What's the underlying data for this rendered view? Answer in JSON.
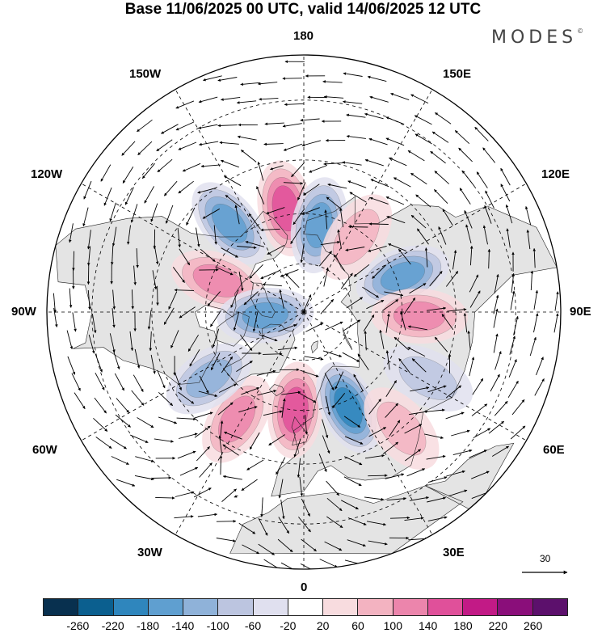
{
  "header": {
    "title": "Base 11/06/2025 00 UTC, valid 14/06/2025 12 UTC",
    "logo_text": "MODES"
  },
  "map": {
    "projection": "north-polar-stereographic",
    "longitude_labels": {
      "top": "180",
      "bottom": "0",
      "left": "90W",
      "right": "90E",
      "upper_left_1": "150W",
      "upper_left_2": "120W",
      "lower_left_1": "60W",
      "lower_left_2": "30W",
      "upper_right_1": "150E",
      "upper_right_2": "120E",
      "lower_right_1": "60E",
      "lower_right_2": "30E"
    },
    "reference_vector": {
      "label": "30"
    },
    "anomaly_centers": [
      {
        "name": "pos-150W",
        "lon": -170,
        "lat": 58,
        "value": 160
      },
      {
        "name": "neg-170E",
        "lon": 170,
        "lat": 63,
        "value": -160
      },
      {
        "name": "neg-135W",
        "lon": -140,
        "lat": 55,
        "value": -140
      },
      {
        "name": "pos-150E",
        "lon": 145,
        "lat": 62,
        "value": 60
      },
      {
        "name": "neg-115E",
        "lon": 110,
        "lat": 58,
        "value": -140
      },
      {
        "name": "pos-95E",
        "lon": 88,
        "lat": 55,
        "value": 100
      },
      {
        "name": "pos-100W",
        "lon": -110,
        "lat": 62,
        "value": 100
      },
      {
        "name": "neg-75W",
        "lon": -85,
        "lat": 78,
        "value": -140
      },
      {
        "name": "pos-0",
        "lon": -5,
        "lat": 60,
        "value": 160
      },
      {
        "name": "neg-25E",
        "lon": 25,
        "lat": 58,
        "value": -180
      },
      {
        "name": "pos-30W",
        "lon": -32,
        "lat": 52,
        "value": 100
      },
      {
        "name": "neg-50W",
        "lon": -55,
        "lat": 55,
        "value": -120
      },
      {
        "name": "neg-60E",
        "lon": 62,
        "lat": 48,
        "value": -60
      },
      {
        "name": "pos-40E",
        "lon": 40,
        "lat": 45,
        "value": 60
      }
    ],
    "colors": {
      "background": "#ffffff",
      "land": "#e4e4e4",
      "coast": "#222222",
      "grid": "#000000",
      "vector": "#000000"
    }
  },
  "colorbar": {
    "colors": [
      "#08304f",
      "#0b5f8f",
      "#2f86bd",
      "#5f9fd0",
      "#8fb2d9",
      "#bcc5e0",
      "#e0e0ef",
      "#ffffff",
      "#f8dcdf",
      "#f3b3c1",
      "#ec85ac",
      "#e0509a",
      "#c21a86",
      "#8a0e7a",
      "#5c106c"
    ],
    "labels": [
      "-260",
      "-220",
      "-180",
      "-140",
      "-100",
      "-60",
      "-20",
      "20",
      "60",
      "100",
      "140",
      "180",
      "220",
      "260"
    ]
  }
}
